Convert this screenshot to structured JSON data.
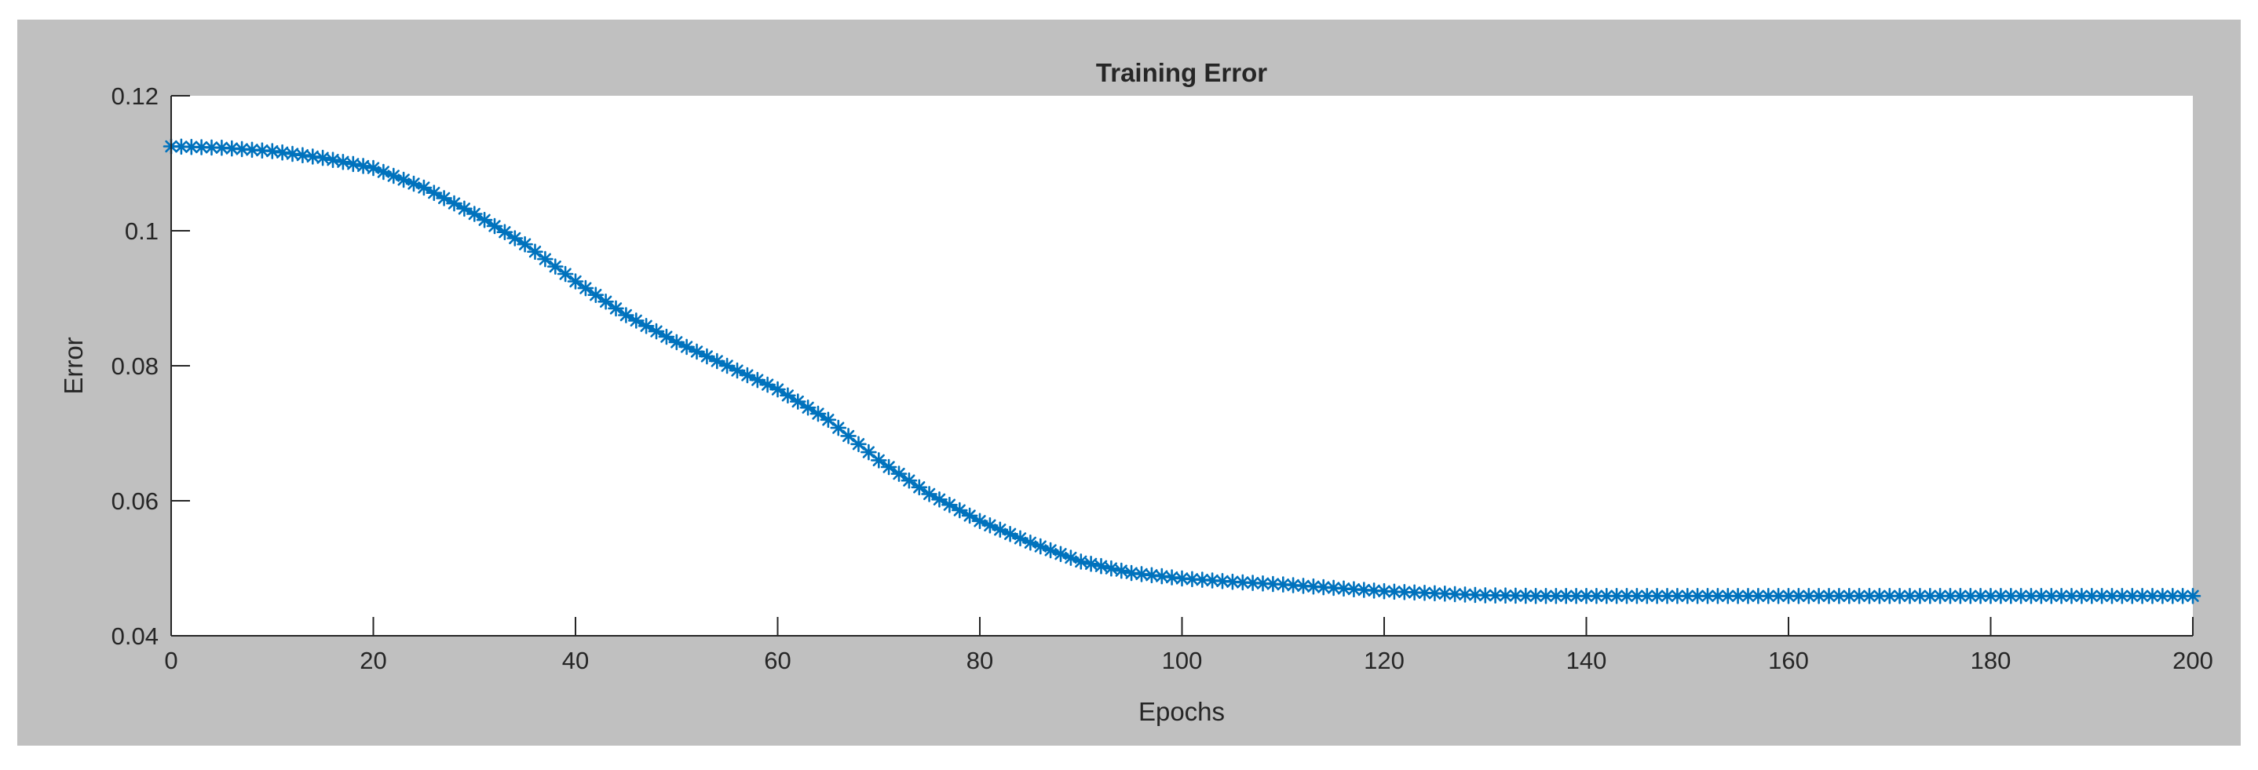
{
  "figure": {
    "background_color": "#c0c0c0",
    "axes_color": "#ffffff",
    "line_color": "#0072bd"
  },
  "chart_data": {
    "type": "line",
    "title": "Training Error",
    "xlabel": "Epochs",
    "ylabel": "Error",
    "xlim": [
      0,
      200
    ],
    "ylim": [
      0.04,
      0.12
    ],
    "xticks": [
      0,
      20,
      40,
      60,
      80,
      100,
      120,
      140,
      160,
      180,
      200
    ],
    "yticks": [
      0.04,
      0.06,
      0.08,
      0.1,
      0.12
    ],
    "xtick_labels": [
      "0",
      "20",
      "40",
      "60",
      "80",
      "100",
      "120",
      "140",
      "160",
      "180",
      "200"
    ],
    "ytick_labels": [
      "0.04",
      "0.06",
      "0.08",
      "0.1",
      "0.12"
    ],
    "grid": false,
    "marker": "asterisk",
    "x": [
      0,
      5,
      10,
      15,
      20,
      25,
      30,
      35,
      40,
      45,
      50,
      55,
      60,
      65,
      70,
      75,
      80,
      85,
      90,
      95,
      100,
      105,
      110,
      115,
      120,
      125,
      130,
      135,
      140,
      145,
      150,
      155,
      160,
      165,
      170,
      175,
      180,
      185,
      190,
      195,
      200
    ],
    "y": [
      0.1125,
      0.1123,
      0.1118,
      0.1108,
      0.1093,
      0.1064,
      0.1025,
      0.098,
      0.0925,
      0.0875,
      0.0835,
      0.08,
      0.0765,
      0.072,
      0.066,
      0.061,
      0.057,
      0.0538,
      0.051,
      0.0493,
      0.0485,
      0.048,
      0.0476,
      0.0471,
      0.0466,
      0.0463,
      0.046,
      0.0459,
      0.0459,
      0.0459,
      0.0459,
      0.0459,
      0.0459,
      0.0459,
      0.0459,
      0.0459,
      0.0459,
      0.0459,
      0.0459,
      0.0459,
      0.0459
    ]
  }
}
